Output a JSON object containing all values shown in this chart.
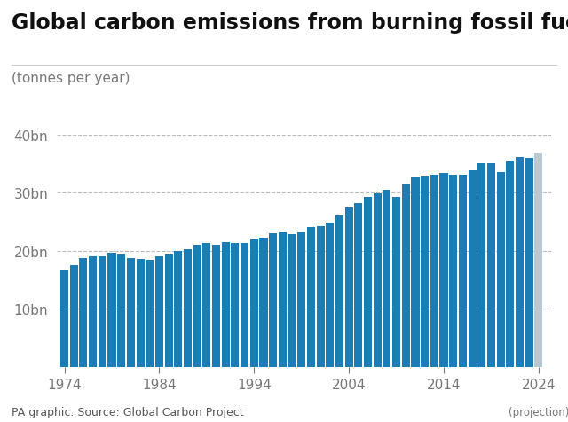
{
  "title": "Global carbon emissions from burning fossil fuels",
  "ylabel": "(tonnes per year)",
  "source": "PA graphic. Source: Global Carbon Project",
  "bar_color": "#1a7db5",
  "projection_color": "#b8c9d4",
  "background_color": "#ffffff",
  "ylim_max": 40000000000,
  "yticks": [
    0,
    10000000000,
    20000000000,
    30000000000,
    40000000000
  ],
  "ytick_labels": [
    "",
    "10bn",
    "20bn",
    "30bn",
    "40bn"
  ],
  "years": [
    1974,
    1975,
    1976,
    1977,
    1978,
    1979,
    1980,
    1981,
    1982,
    1983,
    1984,
    1985,
    1986,
    1987,
    1988,
    1989,
    1990,
    1991,
    1992,
    1993,
    1994,
    1995,
    1996,
    1997,
    1998,
    1999,
    2000,
    2001,
    2002,
    2003,
    2004,
    2005,
    2006,
    2007,
    2008,
    2009,
    2010,
    2011,
    2012,
    2013,
    2014,
    2015,
    2016,
    2017,
    2018,
    2019,
    2020,
    2021,
    2022,
    2023,
    2024
  ],
  "values": [
    16800000000,
    17600000000,
    18700000000,
    19000000000,
    19100000000,
    19700000000,
    19300000000,
    18800000000,
    18600000000,
    18500000000,
    19100000000,
    19400000000,
    19900000000,
    20300000000,
    21000000000,
    21300000000,
    21100000000,
    21500000000,
    21400000000,
    21300000000,
    21900000000,
    22300000000,
    23000000000,
    23200000000,
    22900000000,
    23100000000,
    24100000000,
    24300000000,
    24900000000,
    26000000000,
    27500000000,
    28200000000,
    29200000000,
    29900000000,
    30500000000,
    29300000000,
    31400000000,
    32600000000,
    32800000000,
    33100000000,
    33400000000,
    33100000000,
    33100000000,
    33900000000,
    35000000000,
    35100000000,
    33600000000,
    35300000000,
    36100000000,
    36000000000,
    36800000000
  ],
  "projection_year": 2024,
  "xtick_years": [
    1974,
    1984,
    1994,
    2004,
    2014,
    2024
  ],
  "title_fontsize": 17,
  "ylabel_fontsize": 11,
  "tick_fontsize": 11,
  "source_fontsize": 9,
  "title_color": "#111111",
  "tick_color": "#777777",
  "grid_color": "#bbbbbb",
  "source_color": "#555555"
}
